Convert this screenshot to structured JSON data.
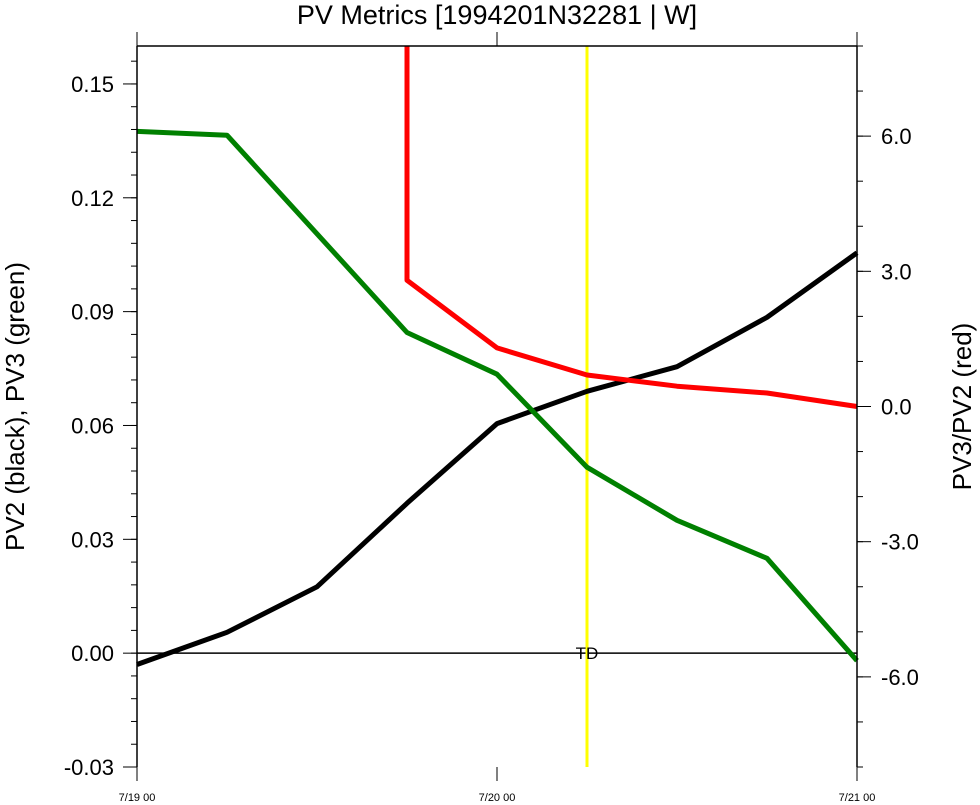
{
  "chart_data": {
    "type": "line",
    "title": "PV Metrics [1994201N32281 | W]",
    "ylabel_left": "PV2 (black), PV3 (green)",
    "ylabel_right": "PV3/PV2 (red)",
    "x_ticks": [
      {
        "x": 0,
        "label": "7/19 00"
      },
      {
        "x": 24,
        "label": "7/20 00"
      },
      {
        "x": 48,
        "label": "7/21 00"
      }
    ],
    "xlim": [
      0,
      48
    ],
    "ylim_left": [
      -0.03,
      0.16
    ],
    "ylim_right": [
      -8.0,
      8.0
    ],
    "left_ticks": [
      {
        "v": -0.03,
        "label": "-0.03"
      },
      {
        "v": 0.0,
        "label": "0.00"
      },
      {
        "v": 0.03,
        "label": "0.03"
      },
      {
        "v": 0.06,
        "label": "0.06"
      },
      {
        "v": 0.09,
        "label": "0.09"
      },
      {
        "v": 0.12,
        "label": "0.12"
      },
      {
        "v": 0.15,
        "label": "0.15"
      }
    ],
    "right_ticks": [
      {
        "v": -6.0,
        "label": "-6.0"
      },
      {
        "v": -3.0,
        "label": "-3.0"
      },
      {
        "v": 0.0,
        "label": "0.0"
      },
      {
        "v": 3.0,
        "label": "3.0"
      },
      {
        "v": 6.0,
        "label": "6.0"
      }
    ],
    "series": [
      {
        "axis": "left",
        "color": "#000000",
        "points": [
          [
            0,
            -0.003
          ],
          [
            6,
            0.0055
          ],
          [
            12,
            0.0175
          ],
          [
            18,
            0.0395
          ],
          [
            24,
            0.0605
          ],
          [
            30,
            0.069
          ],
          [
            36,
            0.0755
          ],
          [
            42,
            0.0885
          ],
          [
            48,
            0.1055
          ]
        ]
      },
      {
        "axis": "left",
        "color": "#008000",
        "points": [
          [
            0,
            0.1375
          ],
          [
            6,
            0.1365
          ],
          [
            12,
            0.1105
          ],
          [
            18,
            0.0845
          ],
          [
            24,
            0.0735
          ],
          [
            30,
            0.049
          ],
          [
            36,
            0.035
          ],
          [
            42,
            0.025
          ],
          [
            48,
            -0.002
          ]
        ]
      },
      {
        "axis": "right",
        "color": "#ff0000",
        "points": [
          [
            18,
            8.0
          ],
          [
            18,
            2.8
          ],
          [
            24,
            1.3
          ],
          [
            30,
            0.7
          ],
          [
            36,
            0.45
          ],
          [
            42,
            0.3
          ],
          [
            48,
            0.0
          ]
        ]
      }
    ],
    "reference_lines": [
      {
        "orientation": "horizontal",
        "axis": "left",
        "value": 0.0,
        "color": "#000000"
      },
      {
        "orientation": "vertical",
        "x": 30,
        "color": "#ffff00",
        "label": "TD"
      }
    ]
  }
}
